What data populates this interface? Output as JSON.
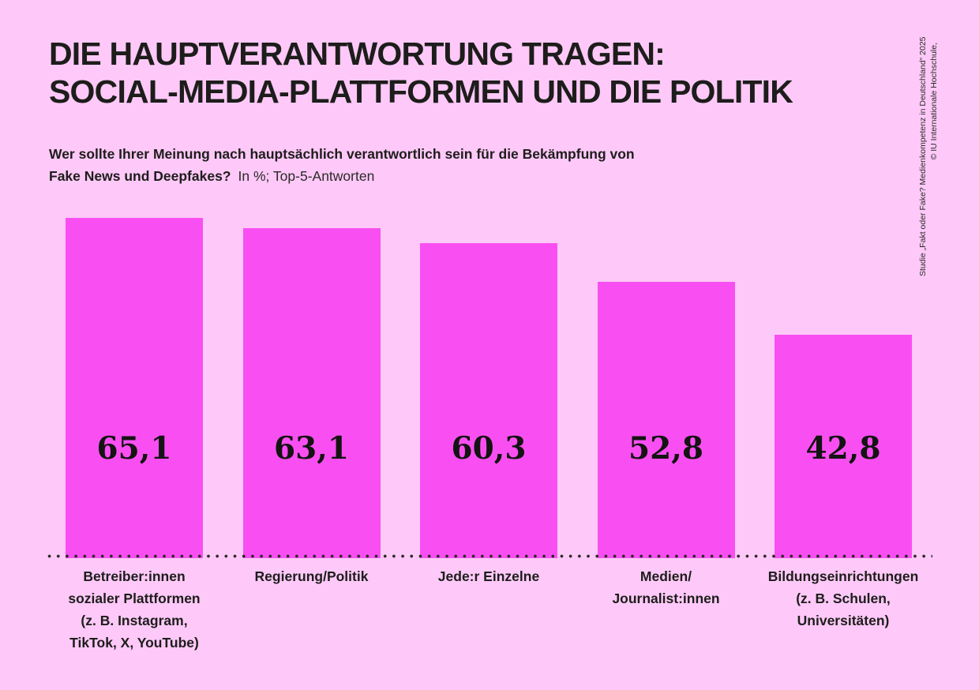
{
  "header": {
    "title_line1": "DIE HAUPTVERANTWORTUNG TRAGEN:",
    "title_line2": "SOCIAL-MEDIA-PLATTFORMEN UND DIE POLITIK",
    "question_line1": "Wer sollte Ihrer Meinung nach hauptsächlich verantwortlich sein für die Bekämpfung von",
    "question_line2_bold": "Fake News und Deepfakes?",
    "question_note": "In %; Top-5-Antworten"
  },
  "credit": {
    "line1": "© IU Internationale Hochschule,",
    "line2": "Studie „Fakt oder Fake? Medienkompetenz in Deutschland“ 2025"
  },
  "colors": {
    "background": "#fec9f8",
    "bar": "#f94ff2",
    "text": "#1d1d1b"
  },
  "chart_data": {
    "type": "bar",
    "title": "Die Hauptverantwortung tragen: Social-Media-Plattformen und die Politik",
    "question": "Wer sollte Ihrer Meinung nach hauptsächlich verantwortlich sein für die Bekämpfung von Fake News und Deepfakes?",
    "unit_note": "In %; Top-5-Antworten",
    "ylabel": "%",
    "ylim": [
      0,
      70
    ],
    "grid": false,
    "legend": "none",
    "categories": [
      "Betreiber:innen sozialer Plattformen (z. B. Instagram, TikTok, X, YouTube)",
      "Regierung/Politik",
      "Jede:r Einzelne",
      "Medien/Journalist:innen",
      "Bildungseinrichtungen (z. B. Schulen, Universitäten)"
    ],
    "category_lines": [
      [
        "Betreiber:innen",
        "sozialer Plattformen",
        "(z. B. Instagram,",
        "TikTok, X, YouTube)"
      ],
      [
        "Regierung/Politik"
      ],
      [
        "Jede:r Einzelne"
      ],
      [
        "Medien/",
        "Journalist:innen"
      ],
      [
        "Bildungseinrichtungen",
        "(z. B. Schulen,",
        "Universitäten)"
      ]
    ],
    "values": [
      65.1,
      63.1,
      60.3,
      52.8,
      42.8
    ],
    "value_labels": [
      "65,1",
      "63,1",
      "60,3",
      "52,8",
      "42,8"
    ]
  }
}
